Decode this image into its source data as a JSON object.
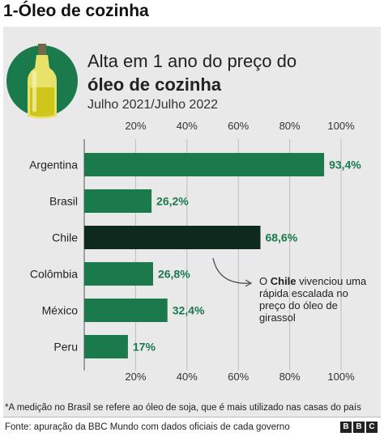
{
  "heading": "1-Óleo de cozinha",
  "chart_data": {
    "type": "bar",
    "orientation": "horizontal",
    "title_line1": "Alta em 1 ano do preço do",
    "title_line2": "óleo de cozinha",
    "subtitle": "Julho 2021/Julho 2022",
    "categories": [
      "Argentina",
      "Brasil",
      "Chile",
      "Colômbia",
      "México",
      "Peru"
    ],
    "values": [
      93.4,
      26.2,
      68.6,
      26.8,
      32.4,
      17
    ],
    "value_labels": [
      "93,4%",
      "26,2%",
      "68,6%",
      "26,8%",
      "32,4%",
      "17%"
    ],
    "xlim": [
      0,
      100
    ],
    "ticks": [
      20,
      40,
      60,
      80,
      100
    ],
    "tick_labels": [
      "20%",
      "40%",
      "60%",
      "80%",
      "100%"
    ],
    "grid": true,
    "highlight_category": "Chile",
    "bar_color": "#1a7a4c",
    "highlight_color": "#0c2b1c",
    "label_color": "#1a7a4c"
  },
  "annotation": {
    "prefix": "O ",
    "bold": "Chile",
    "rest": " vivenciou uma rápida escalada no preço do óleo de girassol"
  },
  "footnote": "*A medição no Brasil se refere ao óleo de soja, que é mais utilizado nas casas do país",
  "source": "Fonte: apuração da BBC Mundo com dados oficiais de cada governo",
  "logo": [
    "B",
    "B",
    "C"
  ]
}
